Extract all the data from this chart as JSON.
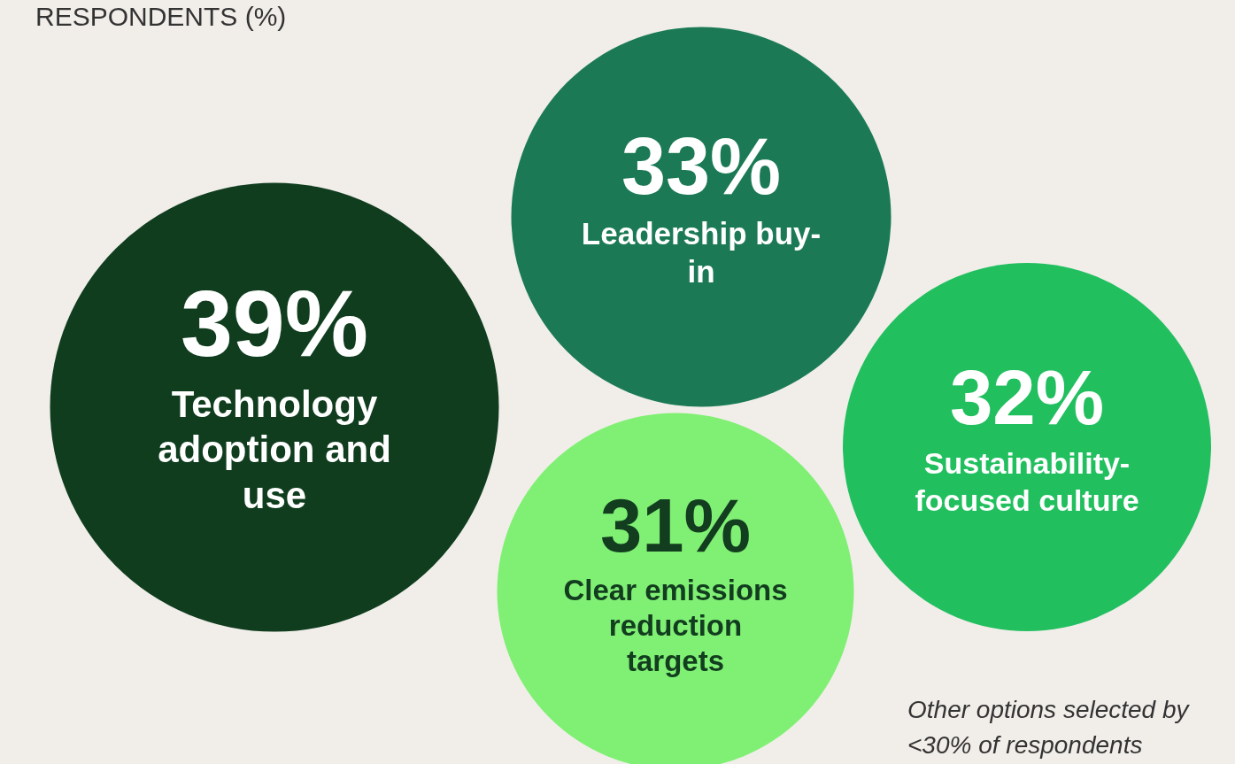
{
  "chart_data": {
    "type": "other",
    "title": "RESPONDENTS (%)",
    "categories": [
      "Technology adoption and use",
      "Leadership buy-in",
      "Sustainability-focused culture",
      "Clear emissions reduction targets"
    ],
    "values": [
      39,
      33,
      32,
      31
    ],
    "value_labels": [
      "39%",
      "33%",
      "32%",
      "31%"
    ],
    "colors": [
      "#0f3d1e",
      "#1b7a55",
      "#22bf5f",
      "#80f074"
    ],
    "annotations": [
      "Other options selected by <30% of respondents"
    ]
  }
}
